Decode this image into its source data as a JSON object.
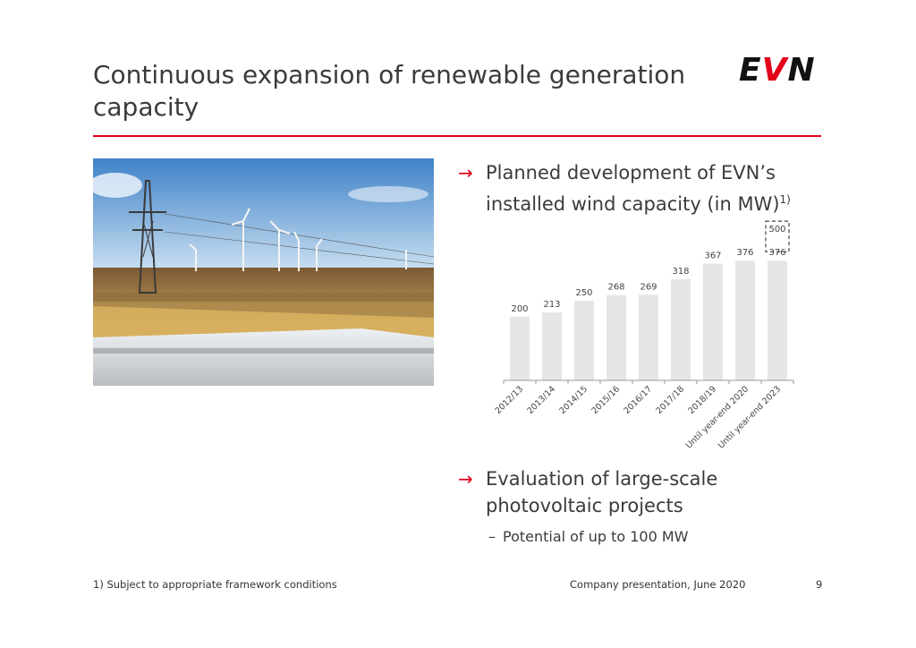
{
  "slide": {
    "title": "Continuous expansion of renewable generation capacity",
    "logo_text_1": "E",
    "logo_text_2": "V",
    "logo_text_3": "N",
    "accent_color": "#e2001a"
  },
  "bullets": [
    {
      "arrow": "→",
      "text": "Planned development of EVN’s installed wind capacity (in MW)",
      "footnote_marker": "1)"
    },
    {
      "arrow": "→",
      "text": "Evaluation of large-scale photovoltaic projects"
    }
  ],
  "sub_bullet": {
    "dash": "–",
    "text": "Potential of up to 100 MW"
  },
  "footer": {
    "footnote": "1) Subject to appropriate framework conditions",
    "center": "Company presentation, June 2020",
    "page": "9"
  },
  "chart_data": {
    "type": "bar",
    "categories": [
      "2012/13",
      "2013/14",
      "2014/15",
      "2015/16",
      "2016/17",
      "2017/18",
      "2018/19",
      "Until year-end 2020",
      "Until year-end 2023"
    ],
    "values": [
      200,
      213,
      250,
      268,
      269,
      318,
      367,
      376,
      376
    ],
    "planned_target": {
      "category": "Until year-end 2023",
      "value": 500,
      "style": "dashed"
    },
    "ylim": [
      0,
      520
    ],
    "grid": false,
    "title": "",
    "xlabel": "",
    "ylabel": "",
    "bar_color": "#e6e6e6"
  }
}
